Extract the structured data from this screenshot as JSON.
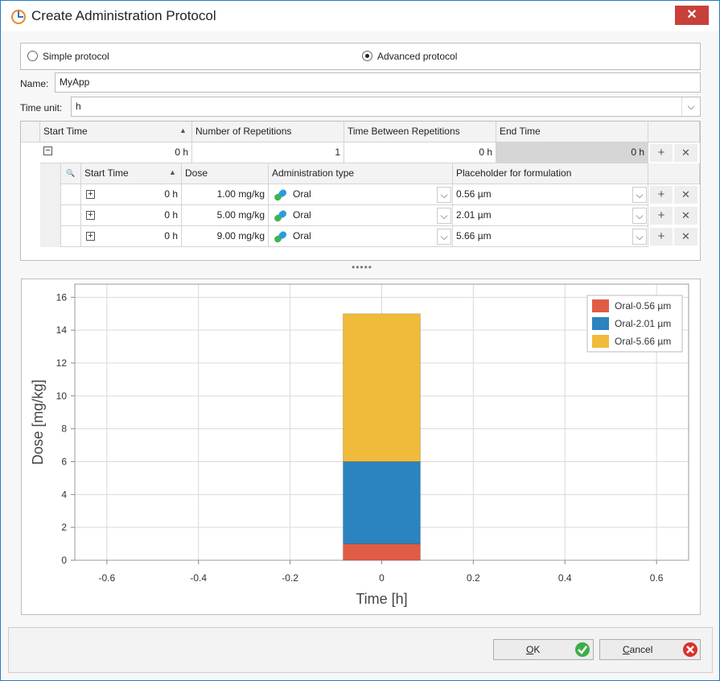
{
  "window": {
    "title": "Create Administration Protocol"
  },
  "protocol_type": {
    "options": [
      "Simple protocol",
      "Advanced protocol"
    ],
    "selected": 1
  },
  "name": {
    "label": "Name:",
    "value": "MyApp"
  },
  "time_unit": {
    "label": "Time unit:",
    "value": "h"
  },
  "outer_table": {
    "columns": [
      "Start Time",
      "Number of Repetitions",
      "Time Between Repetitions",
      "End Time"
    ],
    "row": [
      "0 h",
      "1",
      "0 h",
      "0 h"
    ]
  },
  "inner_table": {
    "columns": [
      "Start Time",
      "Dose",
      "Administration type",
      "Placeholder for formulation"
    ],
    "rows": [
      [
        "0 h",
        "1.00 mg/kg",
        "Oral",
        "0.56 µm"
      ],
      [
        "0 h",
        "5.00 mg/kg",
        "Oral",
        "2.01 µm"
      ],
      [
        "0 h",
        "9.00 mg/kg",
        "Oral",
        "5.66 µm"
      ]
    ]
  },
  "chart_data": {
    "type": "stacked_bar",
    "x_label": "Time [h]",
    "y_label": "Dose [mg/kg]",
    "x": [
      0
    ],
    "series": [
      {
        "name": "Oral-0.56 µm",
        "color": "#e05c45",
        "values": [
          1
        ]
      },
      {
        "name": "Oral-2.01 µm",
        "color": "#2b83c0",
        "values": [
          5
        ]
      },
      {
        "name": "Oral-5.66 µm",
        "color": "#f0bb3a",
        "values": [
          9
        ]
      }
    ],
    "xlim": [
      -0.67,
      0.67
    ],
    "xticks": [
      -0.6,
      -0.4,
      -0.2,
      0,
      0.2,
      0.4,
      0.6
    ],
    "ylim": [
      0,
      16.8
    ],
    "yticks": [
      0,
      2,
      4,
      6,
      8,
      10,
      12,
      14,
      16
    ],
    "grid": true,
    "legend": "top-right"
  },
  "buttons": {
    "ok": "OK",
    "cancel": "Cancel"
  }
}
